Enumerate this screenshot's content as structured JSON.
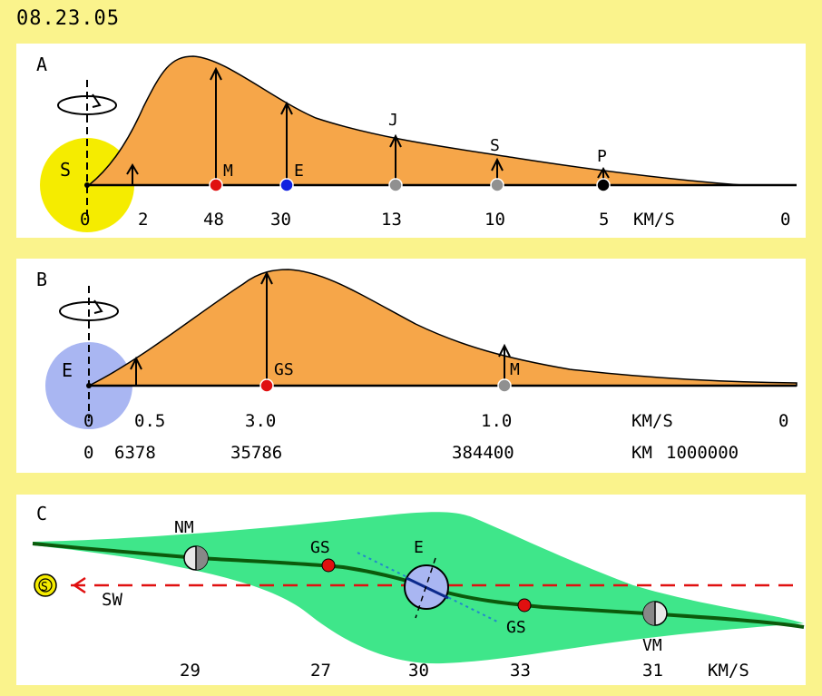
{
  "date": "08.23.05",
  "panel_a": {
    "letter": "A",
    "body_label": "S",
    "unit": "KM/S",
    "markers": [
      {
        "label": "",
        "value": "2",
        "color": "#000000"
      },
      {
        "label": "M",
        "value": "48",
        "color": "#e01010"
      },
      {
        "label": "E",
        "value": "30",
        "color": "#1020e0"
      },
      {
        "label": "J",
        "value": "13",
        "color": "#909090"
      },
      {
        "label": "S",
        "value": "10",
        "color": "#909090"
      },
      {
        "label": "P",
        "value": "5",
        "color": "#000000"
      }
    ],
    "axis_start": "0",
    "axis_end": "0"
  },
  "panel_b": {
    "letter": "B",
    "body_label": "E",
    "unit_speed": "KM/S",
    "unit_distance": "KM",
    "markers": [
      {
        "label": "",
        "speed": "0.5",
        "distance": "6378",
        "color": "#000000"
      },
      {
        "label": "GS",
        "speed": "3.0",
        "distance": "35786",
        "color": "#e01010"
      },
      {
        "label": "M",
        "speed": "1.0",
        "distance": "384400",
        "color": "#909090"
      }
    ],
    "speed_start": "0",
    "speed_end": "0",
    "distance_start": "0",
    "distance_end": "1000000"
  },
  "panel_c": {
    "letter": "C",
    "sun_label": "S",
    "sw_label": "SW",
    "earth_label": "E",
    "unit": "KM/S",
    "points": [
      {
        "label": "NM",
        "value": "29"
      },
      {
        "label": "GS",
        "value": "27"
      },
      {
        "label": "E",
        "value": "30"
      },
      {
        "label": "GS",
        "value": "33"
      },
      {
        "label": "VM",
        "value": "31"
      }
    ]
  },
  "colors": {
    "background": "#faf38c",
    "hump": "#f6a649",
    "sun": "#f5ec00",
    "earth": "#a9b6f2",
    "band": "#3fe68a",
    "line": "#0c5a0c",
    "red": "#e01010"
  }
}
